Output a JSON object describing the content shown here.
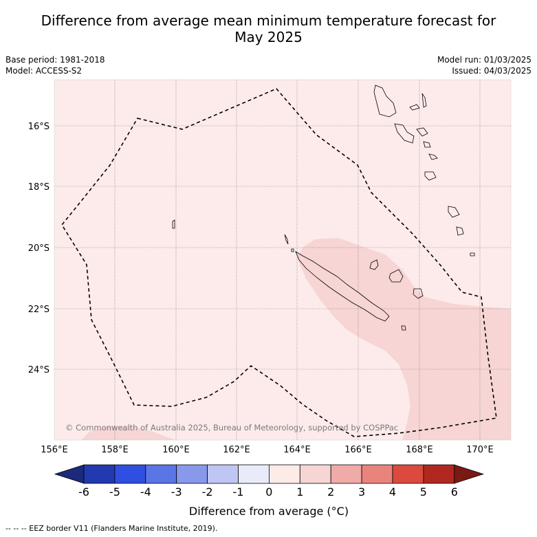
{
  "title_line1": "Difference from average mean minimum temperature forecast for",
  "title_line2": "May 2025",
  "base_period": "Base period: 1981-2018",
  "model": "Model: ACCESS-S2",
  "model_run": "Model run: 01/03/2025",
  "issued": "Issued: 04/03/2025",
  "copyright": "© Commonwealth of Australia 2025, Bureau of Meteorology, supported by COSPPac",
  "lon_labels": [
    "156°E",
    "158°E",
    "160°E",
    "162°E",
    "164°E",
    "166°E",
    "168°E",
    "170°E"
  ],
  "lat_labels": [
    "16°S",
    "18°S",
    "20°S",
    "22°S",
    "24°S"
  ],
  "colorbar": {
    "ticks": [
      "-6",
      "-5",
      "-4",
      "-3",
      "-2",
      "-1",
      "0",
      "1",
      "2",
      "3",
      "4",
      "5",
      "6"
    ],
    "colors": [
      "#1b2a7a",
      "#2339b0",
      "#2f4fe0",
      "#5a75e6",
      "#8898eb",
      "#bfc6f3",
      "#e8ebfa",
      "#fdebe8",
      "#f6d5d4",
      "#f0aaa8",
      "#e8847c",
      "#dc4a3e",
      "#b0281f",
      "#7a1a14"
    ],
    "label": "Difference from average (°C)"
  },
  "legend_note": "--  --  -- EEZ border V11 (Flanders Marine Institute, 2019).",
  "map_colors": {
    "background": "#fcebea",
    "anomaly_1_2": "#f6d5d4",
    "border": "#000000",
    "grid": "#666666"
  }
}
